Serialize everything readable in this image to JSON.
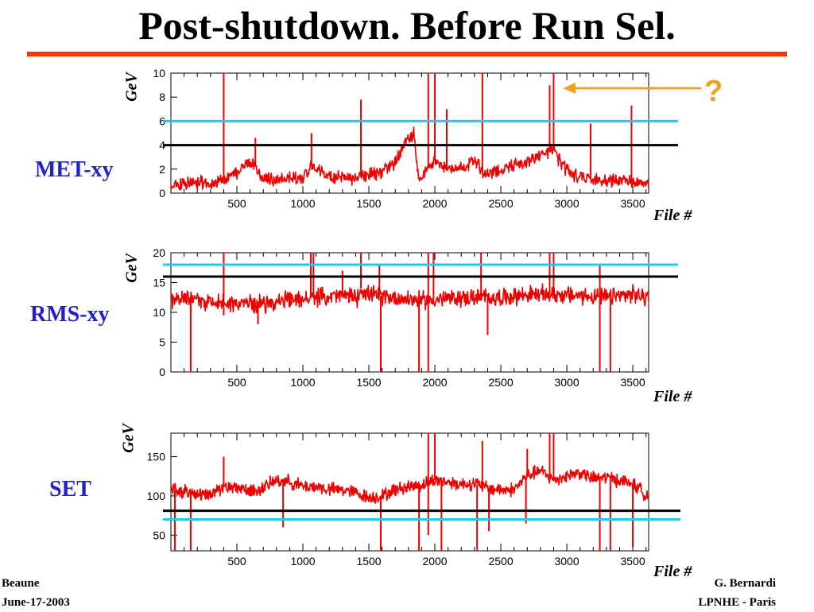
{
  "slide": {
    "title": "Post-shutdown. Before Run Sel.",
    "footer_left": [
      "Beaune",
      "June-17-2003"
    ],
    "footer_right": [
      "G. Bernardi",
      "LPNHE - Paris"
    ],
    "annotation": "?"
  },
  "colors": {
    "title_rule": "#ff3300",
    "panel_label": "#2020d0",
    "data": "#ee0000",
    "black_threshold": "#000000",
    "cyan_threshold": "#22c8f0",
    "arrow": "#f0a020"
  },
  "chart_data": [
    {
      "type": "line",
      "label": "MET-xy",
      "ylabel": "GeV",
      "xlabel": "File #",
      "xlim": [
        0,
        3620
      ],
      "ylim": [
        0,
        10
      ],
      "xticks": [
        500,
        1000,
        1500,
        2000,
        2500,
        3000,
        3500
      ],
      "yticks": [
        0,
        2,
        4,
        6,
        8,
        10
      ],
      "thresholds": {
        "black": 4,
        "cyan": 6
      },
      "baseline": [
        [
          0,
          0.8
        ],
        [
          300,
          0.9
        ],
        [
          420,
          1.1
        ],
        [
          500,
          1.8
        ],
        [
          560,
          2.3
        ],
        [
          620,
          2.6
        ],
        [
          680,
          1.4
        ],
        [
          800,
          1.1
        ],
        [
          900,
          1.3
        ],
        [
          1000,
          1.2
        ],
        [
          1060,
          2.4
        ],
        [
          1100,
          2.0
        ],
        [
          1200,
          1.3
        ],
        [
          1300,
          1.2
        ],
        [
          1420,
          1.3
        ],
        [
          1500,
          1.5
        ],
        [
          1600,
          1.8
        ],
        [
          1700,
          2.6
        ],
        [
          1780,
          4.3
        ],
        [
          1840,
          4.9
        ],
        [
          1880,
          1.1
        ],
        [
          1920,
          1.6
        ],
        [
          2000,
          2.8
        ],
        [
          2100,
          2.0
        ],
        [
          2200,
          2.2
        ],
        [
          2320,
          2.6
        ],
        [
          2380,
          1.4
        ],
        [
          2500,
          2.0
        ],
        [
          2600,
          2.3
        ],
        [
          2700,
          2.6
        ],
        [
          2800,
          3.2
        ],
        [
          2900,
          3.6
        ],
        [
          2960,
          2.4
        ],
        [
          3050,
          1.5
        ],
        [
          3150,
          1.3
        ],
        [
          3200,
          1.1
        ],
        [
          3350,
          1.0
        ],
        [
          3500,
          1.0
        ],
        [
          3620,
          0.8
        ]
      ],
      "noise": 0.45,
      "spikes": [
        [
          400,
          10
        ],
        [
          1440,
          7.8
        ],
        [
          1950,
          10
        ],
        [
          2000,
          10
        ],
        [
          2090,
          7.0
        ],
        [
          2360,
          10
        ],
        [
          2870,
          9
        ],
        [
          2900,
          10
        ],
        [
          3180,
          5.8
        ],
        [
          3490,
          7.3
        ],
        [
          1065,
          5.0
        ],
        [
          640,
          4.6
        ]
      ],
      "dips": []
    },
    {
      "type": "line",
      "label": "RMS-xy",
      "ylabel": "GeV",
      "xlabel": "File #",
      "xlim": [
        0,
        3620
      ],
      "ylim": [
        0,
        20
      ],
      "xticks": [
        500,
        1000,
        1500,
        2000,
        2500,
        3000,
        3500
      ],
      "yticks": [
        0,
        5,
        10,
        15,
        20
      ],
      "thresholds": {
        "black": 16,
        "cyan": 18
      },
      "baseline": [
        [
          0,
          12.3
        ],
        [
          300,
          11.8
        ],
        [
          500,
          11.5
        ],
        [
          700,
          11.5
        ],
        [
          900,
          12.0
        ],
        [
          1100,
          12.5
        ],
        [
          1300,
          12.8
        ],
        [
          1420,
          12.5
        ],
        [
          1440,
          14.0
        ],
        [
          1500,
          13.0
        ],
        [
          1700,
          12.5
        ],
        [
          1900,
          12.0
        ],
        [
          2100,
          12.3
        ],
        [
          2300,
          12.5
        ],
        [
          2500,
          12.5
        ],
        [
          2700,
          13.0
        ],
        [
          2900,
          13.0
        ],
        [
          3100,
          12.8
        ],
        [
          3300,
          12.5
        ],
        [
          3500,
          13.0
        ],
        [
          3620,
          12.5
        ]
      ],
      "noise": 1.2,
      "spikes": [
        [
          400,
          20
        ],
        [
          1060,
          20
        ],
        [
          1080,
          20
        ],
        [
          1440,
          20
        ],
        [
          1950,
          20
        ],
        [
          1990,
          20
        ],
        [
          2350,
          20
        ],
        [
          2870,
          20
        ],
        [
          2900,
          20
        ],
        [
          3250,
          18
        ],
        [
          1300,
          17
        ],
        [
          1580,
          18
        ]
      ],
      "dips": [
        [
          150,
          0
        ],
        [
          1590,
          0
        ],
        [
          1880,
          0
        ],
        [
          1950,
          0
        ],
        [
          3250,
          0
        ],
        [
          3330,
          0
        ],
        [
          400,
          9.5
        ],
        [
          2400,
          6.2
        ],
        [
          660,
          8
        ]
      ]
    },
    {
      "type": "line",
      "label": "SET",
      "ylabel": "GeV",
      "xlabel": "File #",
      "xlim": [
        0,
        3620
      ],
      "ylim": [
        30,
        180
      ],
      "xticks": [
        500,
        1000,
        1500,
        2000,
        2500,
        3000,
        3500
      ],
      "yticks": [
        50,
        100,
        150
      ],
      "thresholds": {
        "black": 81,
        "cyan": 70
      },
      "baseline": [
        [
          0,
          108
        ],
        [
          100,
          106
        ],
        [
          200,
          100
        ],
        [
          300,
          100
        ],
        [
          400,
          112
        ],
        [
          500,
          112
        ],
        [
          600,
          105
        ],
        [
          700,
          110
        ],
        [
          800,
          120
        ],
        [
          900,
          118
        ],
        [
          1000,
          112
        ],
        [
          1100,
          112
        ],
        [
          1200,
          108
        ],
        [
          1300,
          108
        ],
        [
          1400,
          104
        ],
        [
          1500,
          98
        ],
        [
          1600,
          100
        ],
        [
          1700,
          108
        ],
        [
          1800,
          112
        ],
        [
          1900,
          114
        ],
        [
          2000,
          120
        ],
        [
          2100,
          118
        ],
        [
          2200,
          115
        ],
        [
          2300,
          116
        ],
        [
          2400,
          110
        ],
        [
          2500,
          108
        ],
        [
          2600,
          108
        ],
        [
          2700,
          126
        ],
        [
          2800,
          132
        ],
        [
          2900,
          120
        ],
        [
          3000,
          126
        ],
        [
          3100,
          130
        ],
        [
          3200,
          122
        ],
        [
          3300,
          124
        ],
        [
          3400,
          120
        ],
        [
          3500,
          115
        ],
        [
          3620,
          100
        ]
      ],
      "noise": 7,
      "spikes": [
        [
          1950,
          180
        ],
        [
          2000,
          180
        ],
        [
          2360,
          170
        ],
        [
          2870,
          180
        ],
        [
          2900,
          180
        ],
        [
          400,
          150
        ],
        [
          2700,
          160
        ]
      ],
      "dips": [
        [
          30,
          30
        ],
        [
          150,
          30
        ],
        [
          850,
          60
        ],
        [
          1590,
          30
        ],
        [
          1880,
          30
        ],
        [
          1950,
          50
        ],
        [
          2050,
          30
        ],
        [
          2320,
          30
        ],
        [
          2410,
          55
        ],
        [
          2690,
          65
        ],
        [
          3250,
          30
        ],
        [
          3330,
          30
        ],
        [
          3500,
          35
        ]
      ]
    }
  ]
}
